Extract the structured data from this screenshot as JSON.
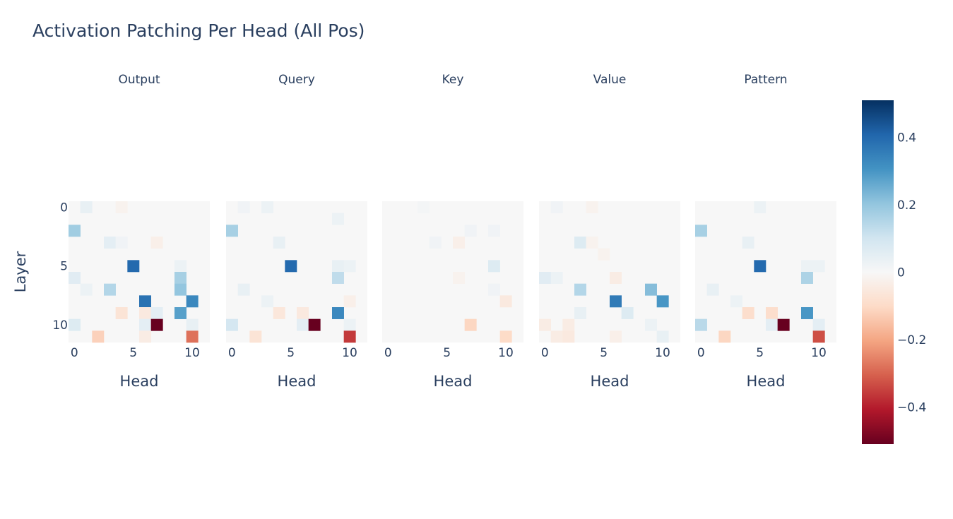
{
  "chart_data": {
    "type": "heatmap",
    "title": "Activation Patching Per Head (All Pos)",
    "xlabel": "Head",
    "ylabel": "Layer",
    "n_layers": 12,
    "n_heads": 12,
    "x_ticks": [
      0,
      5,
      10
    ],
    "y_ticks": [
      0,
      5,
      10
    ],
    "zlim": [
      -0.51,
      0.51
    ],
    "colorbar_ticks": [
      0.4,
      0.2,
      0,
      -0.2,
      -0.4
    ],
    "colorbar_tick_labels": [
      "0.4",
      "0.2",
      "0",
      "−0.2",
      "−0.4"
    ],
    "colorscale": "RdBu",
    "panels": [
      {
        "name": "Output",
        "cells": [
          {
            "layer": 0,
            "head": 1,
            "value": 0.04
          },
          {
            "layer": 0,
            "head": 4,
            "value": -0.02
          },
          {
            "layer": 2,
            "head": 0,
            "value": 0.18
          },
          {
            "layer": 3,
            "head": 3,
            "value": 0.05
          },
          {
            "layer": 3,
            "head": 4,
            "value": 0.02
          },
          {
            "layer": 3,
            "head": 7,
            "value": -0.03
          },
          {
            "layer": 5,
            "head": 5,
            "value": 0.4
          },
          {
            "layer": 5,
            "head": 9,
            "value": 0.03
          },
          {
            "layer": 6,
            "head": 0,
            "value": 0.06
          },
          {
            "layer": 6,
            "head": 9,
            "value": 0.17
          },
          {
            "layer": 7,
            "head": 1,
            "value": 0.03
          },
          {
            "layer": 7,
            "head": 3,
            "value": 0.15
          },
          {
            "layer": 7,
            "head": 9,
            "value": 0.2
          },
          {
            "layer": 8,
            "head": 6,
            "value": 0.38
          },
          {
            "layer": 8,
            "head": 10,
            "value": 0.33
          },
          {
            "layer": 9,
            "head": 4,
            "value": -0.07
          },
          {
            "layer": 9,
            "head": 6,
            "value": -0.05
          },
          {
            "layer": 9,
            "head": 7,
            "value": 0.05
          },
          {
            "layer": 9,
            "head": 9,
            "value": 0.28
          },
          {
            "layer": 10,
            "head": 0,
            "value": 0.07
          },
          {
            "layer": 10,
            "head": 6,
            "value": 0.05
          },
          {
            "layer": 10,
            "head": 7,
            "value": -0.51
          },
          {
            "layer": 10,
            "head": 10,
            "value": 0.04
          },
          {
            "layer": 11,
            "head": 2,
            "value": -0.12
          },
          {
            "layer": 11,
            "head": 6,
            "value": -0.04
          },
          {
            "layer": 11,
            "head": 10,
            "value": -0.28
          }
        ]
      },
      {
        "name": "Query",
        "cells": [
          {
            "layer": 0,
            "head": 1,
            "value": 0.02
          },
          {
            "layer": 0,
            "head": 3,
            "value": 0.03
          },
          {
            "layer": 2,
            "head": 0,
            "value": 0.17
          },
          {
            "layer": 1,
            "head": 9,
            "value": 0.03
          },
          {
            "layer": 3,
            "head": 4,
            "value": 0.04
          },
          {
            "layer": 5,
            "head": 5,
            "value": 0.4
          },
          {
            "layer": 5,
            "head": 9,
            "value": 0.04
          },
          {
            "layer": 5,
            "head": 10,
            "value": 0.03
          },
          {
            "layer": 6,
            "head": 9,
            "value": 0.13
          },
          {
            "layer": 7,
            "head": 1,
            "value": 0.04
          },
          {
            "layer": 8,
            "head": 3,
            "value": 0.03
          },
          {
            "layer": 8,
            "head": 10,
            "value": -0.03
          },
          {
            "layer": 9,
            "head": 4,
            "value": -0.06
          },
          {
            "layer": 9,
            "head": 6,
            "value": -0.05
          },
          {
            "layer": 9,
            "head": 9,
            "value": 0.33
          },
          {
            "layer": 10,
            "head": 0,
            "value": 0.09
          },
          {
            "layer": 10,
            "head": 6,
            "value": 0.05
          },
          {
            "layer": 10,
            "head": 7,
            "value": -0.51
          },
          {
            "layer": 10,
            "head": 10,
            "value": 0.03
          },
          {
            "layer": 11,
            "head": 2,
            "value": -0.07
          },
          {
            "layer": 11,
            "head": 10,
            "value": -0.36
          }
        ]
      },
      {
        "name": "Key",
        "cells": [
          {
            "layer": 0,
            "head": 3,
            "value": 0.01
          },
          {
            "layer": 3,
            "head": 4,
            "value": 0.02
          },
          {
            "layer": 3,
            "head": 6,
            "value": -0.03
          },
          {
            "layer": 2,
            "head": 7,
            "value": 0.02
          },
          {
            "layer": 2,
            "head": 9,
            "value": 0.02
          },
          {
            "layer": 5,
            "head": 9,
            "value": 0.07
          },
          {
            "layer": 6,
            "head": 6,
            "value": -0.02
          },
          {
            "layer": 7,
            "head": 9,
            "value": 0.02
          },
          {
            "layer": 8,
            "head": 10,
            "value": -0.05
          },
          {
            "layer": 10,
            "head": 7,
            "value": -0.11
          },
          {
            "layer": 11,
            "head": 10,
            "value": -0.1
          }
        ]
      },
      {
        "name": "Value",
        "cells": [
          {
            "layer": 0,
            "head": 1,
            "value": 0.02
          },
          {
            "layer": 0,
            "head": 4,
            "value": -0.02
          },
          {
            "layer": 3,
            "head": 3,
            "value": 0.07
          },
          {
            "layer": 3,
            "head": 4,
            "value": -0.02
          },
          {
            "layer": 4,
            "head": 5,
            "value": -0.02
          },
          {
            "layer": 6,
            "head": 0,
            "value": 0.06
          },
          {
            "layer": 6,
            "head": 1,
            "value": 0.03
          },
          {
            "layer": 6,
            "head": 6,
            "value": -0.04
          },
          {
            "layer": 7,
            "head": 3,
            "value": 0.15
          },
          {
            "layer": 7,
            "head": 9,
            "value": 0.22
          },
          {
            "layer": 8,
            "head": 6,
            "value": 0.36
          },
          {
            "layer": 8,
            "head": 10,
            "value": 0.3
          },
          {
            "layer": 9,
            "head": 3,
            "value": 0.04
          },
          {
            "layer": 9,
            "head": 7,
            "value": 0.07
          },
          {
            "layer": 10,
            "head": 0,
            "value": -0.04
          },
          {
            "layer": 10,
            "head": 2,
            "value": -0.04
          },
          {
            "layer": 10,
            "head": 9,
            "value": 0.03
          },
          {
            "layer": 11,
            "head": 1,
            "value": -0.04
          },
          {
            "layer": 11,
            "head": 2,
            "value": -0.05
          },
          {
            "layer": 11,
            "head": 6,
            "value": -0.03
          },
          {
            "layer": 11,
            "head": 10,
            "value": 0.04
          }
        ]
      },
      {
        "name": "Pattern",
        "cells": [
          {
            "layer": 0,
            "head": 5,
            "value": 0.03
          },
          {
            "layer": 2,
            "head": 0,
            "value": 0.17
          },
          {
            "layer": 3,
            "head": 4,
            "value": 0.04
          },
          {
            "layer": 5,
            "head": 5,
            "value": 0.4
          },
          {
            "layer": 5,
            "head": 9,
            "value": 0.03
          },
          {
            "layer": 5,
            "head": 10,
            "value": 0.03
          },
          {
            "layer": 6,
            "head": 9,
            "value": 0.16
          },
          {
            "layer": 7,
            "head": 1,
            "value": 0.04
          },
          {
            "layer": 8,
            "head": 3,
            "value": 0.03
          },
          {
            "layer": 9,
            "head": 4,
            "value": -0.09
          },
          {
            "layer": 9,
            "head": 6,
            "value": -0.09
          },
          {
            "layer": 9,
            "head": 9,
            "value": 0.3
          },
          {
            "layer": 10,
            "head": 0,
            "value": 0.14
          },
          {
            "layer": 10,
            "head": 6,
            "value": 0.05
          },
          {
            "layer": 10,
            "head": 7,
            "value": -0.51
          },
          {
            "layer": 10,
            "head": 10,
            "value": 0.05
          },
          {
            "layer": 11,
            "head": 2,
            "value": -0.11
          },
          {
            "layer": 11,
            "head": 10,
            "value": -0.33
          }
        ]
      }
    ]
  }
}
